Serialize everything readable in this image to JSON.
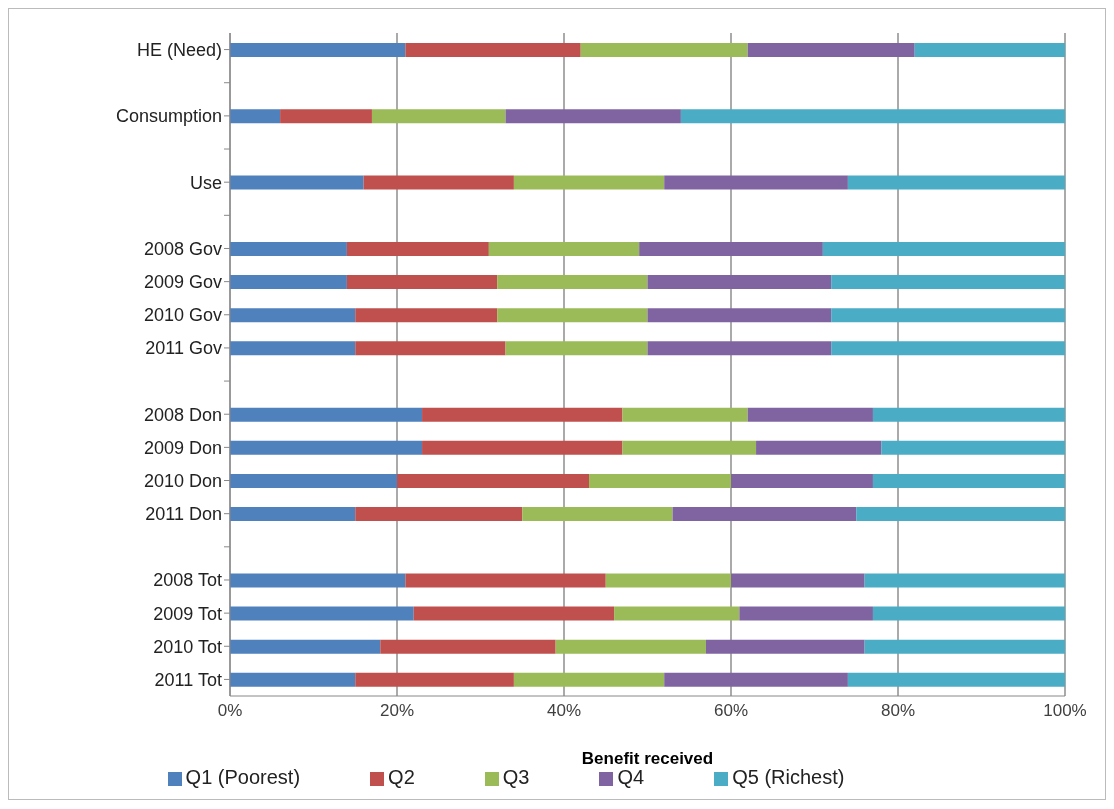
{
  "chart_data": {
    "type": "bar",
    "orientation": "horizontal",
    "stacked": true,
    "categories": [
      "HE (Need)",
      null,
      "Consumption",
      null,
      "Use",
      null,
      "2008 Gov",
      "2009 Gov",
      "2010 Gov",
      "2011 Gov",
      null,
      "2008 Don",
      "2009 Don",
      "2010 Don",
      "2011 Don",
      null,
      "2008 Tot",
      "2009 Tot",
      "2010 Tot",
      "2011 Tot"
    ],
    "series": [
      {
        "name": "Q1 (Poorest)",
        "color": "#4f81bd",
        "values": [
          21,
          null,
          6,
          null,
          16,
          null,
          14,
          14,
          15,
          15,
          null,
          23,
          23,
          20,
          15,
          null,
          21,
          22,
          18,
          15
        ]
      },
      {
        "name": "Q2",
        "color": "#c0504d",
        "values": [
          21,
          null,
          11,
          null,
          18,
          null,
          17,
          18,
          17,
          18,
          null,
          24,
          24,
          23,
          20,
          null,
          24,
          24,
          21,
          19
        ]
      },
      {
        "name": "Q3",
        "color": "#9bbb59",
        "values": [
          20,
          null,
          16,
          null,
          18,
          null,
          18,
          18,
          18,
          17,
          null,
          15,
          16,
          17,
          18,
          null,
          15,
          15,
          18,
          18
        ]
      },
      {
        "name": "Q4",
        "color": "#8064a2",
        "values": [
          20,
          null,
          21,
          null,
          22,
          null,
          22,
          22,
          22,
          22,
          null,
          15,
          15,
          17,
          22,
          null,
          16,
          16,
          19,
          22
        ]
      },
      {
        "name": "Q5 (Richest)",
        "color": "#4bacc6",
        "values": [
          18,
          null,
          46,
          null,
          26,
          null,
          29,
          28,
          28,
          28,
          null,
          23,
          22,
          23,
          25,
          null,
          24,
          23,
          24,
          26
        ]
      }
    ],
    "xlabel": "Benefit received",
    "xlim": [
      0,
      100
    ],
    "xticks": [
      {
        "value": 0,
        "label": "0%"
      },
      {
        "value": 20,
        "label": "20%"
      },
      {
        "value": 40,
        "label": "40%"
      },
      {
        "value": 60,
        "label": "60%"
      },
      {
        "value": 80,
        "label": "80%"
      },
      {
        "value": 100,
        "label": "100%"
      }
    ],
    "grid": "x",
    "legend": "bottom"
  }
}
